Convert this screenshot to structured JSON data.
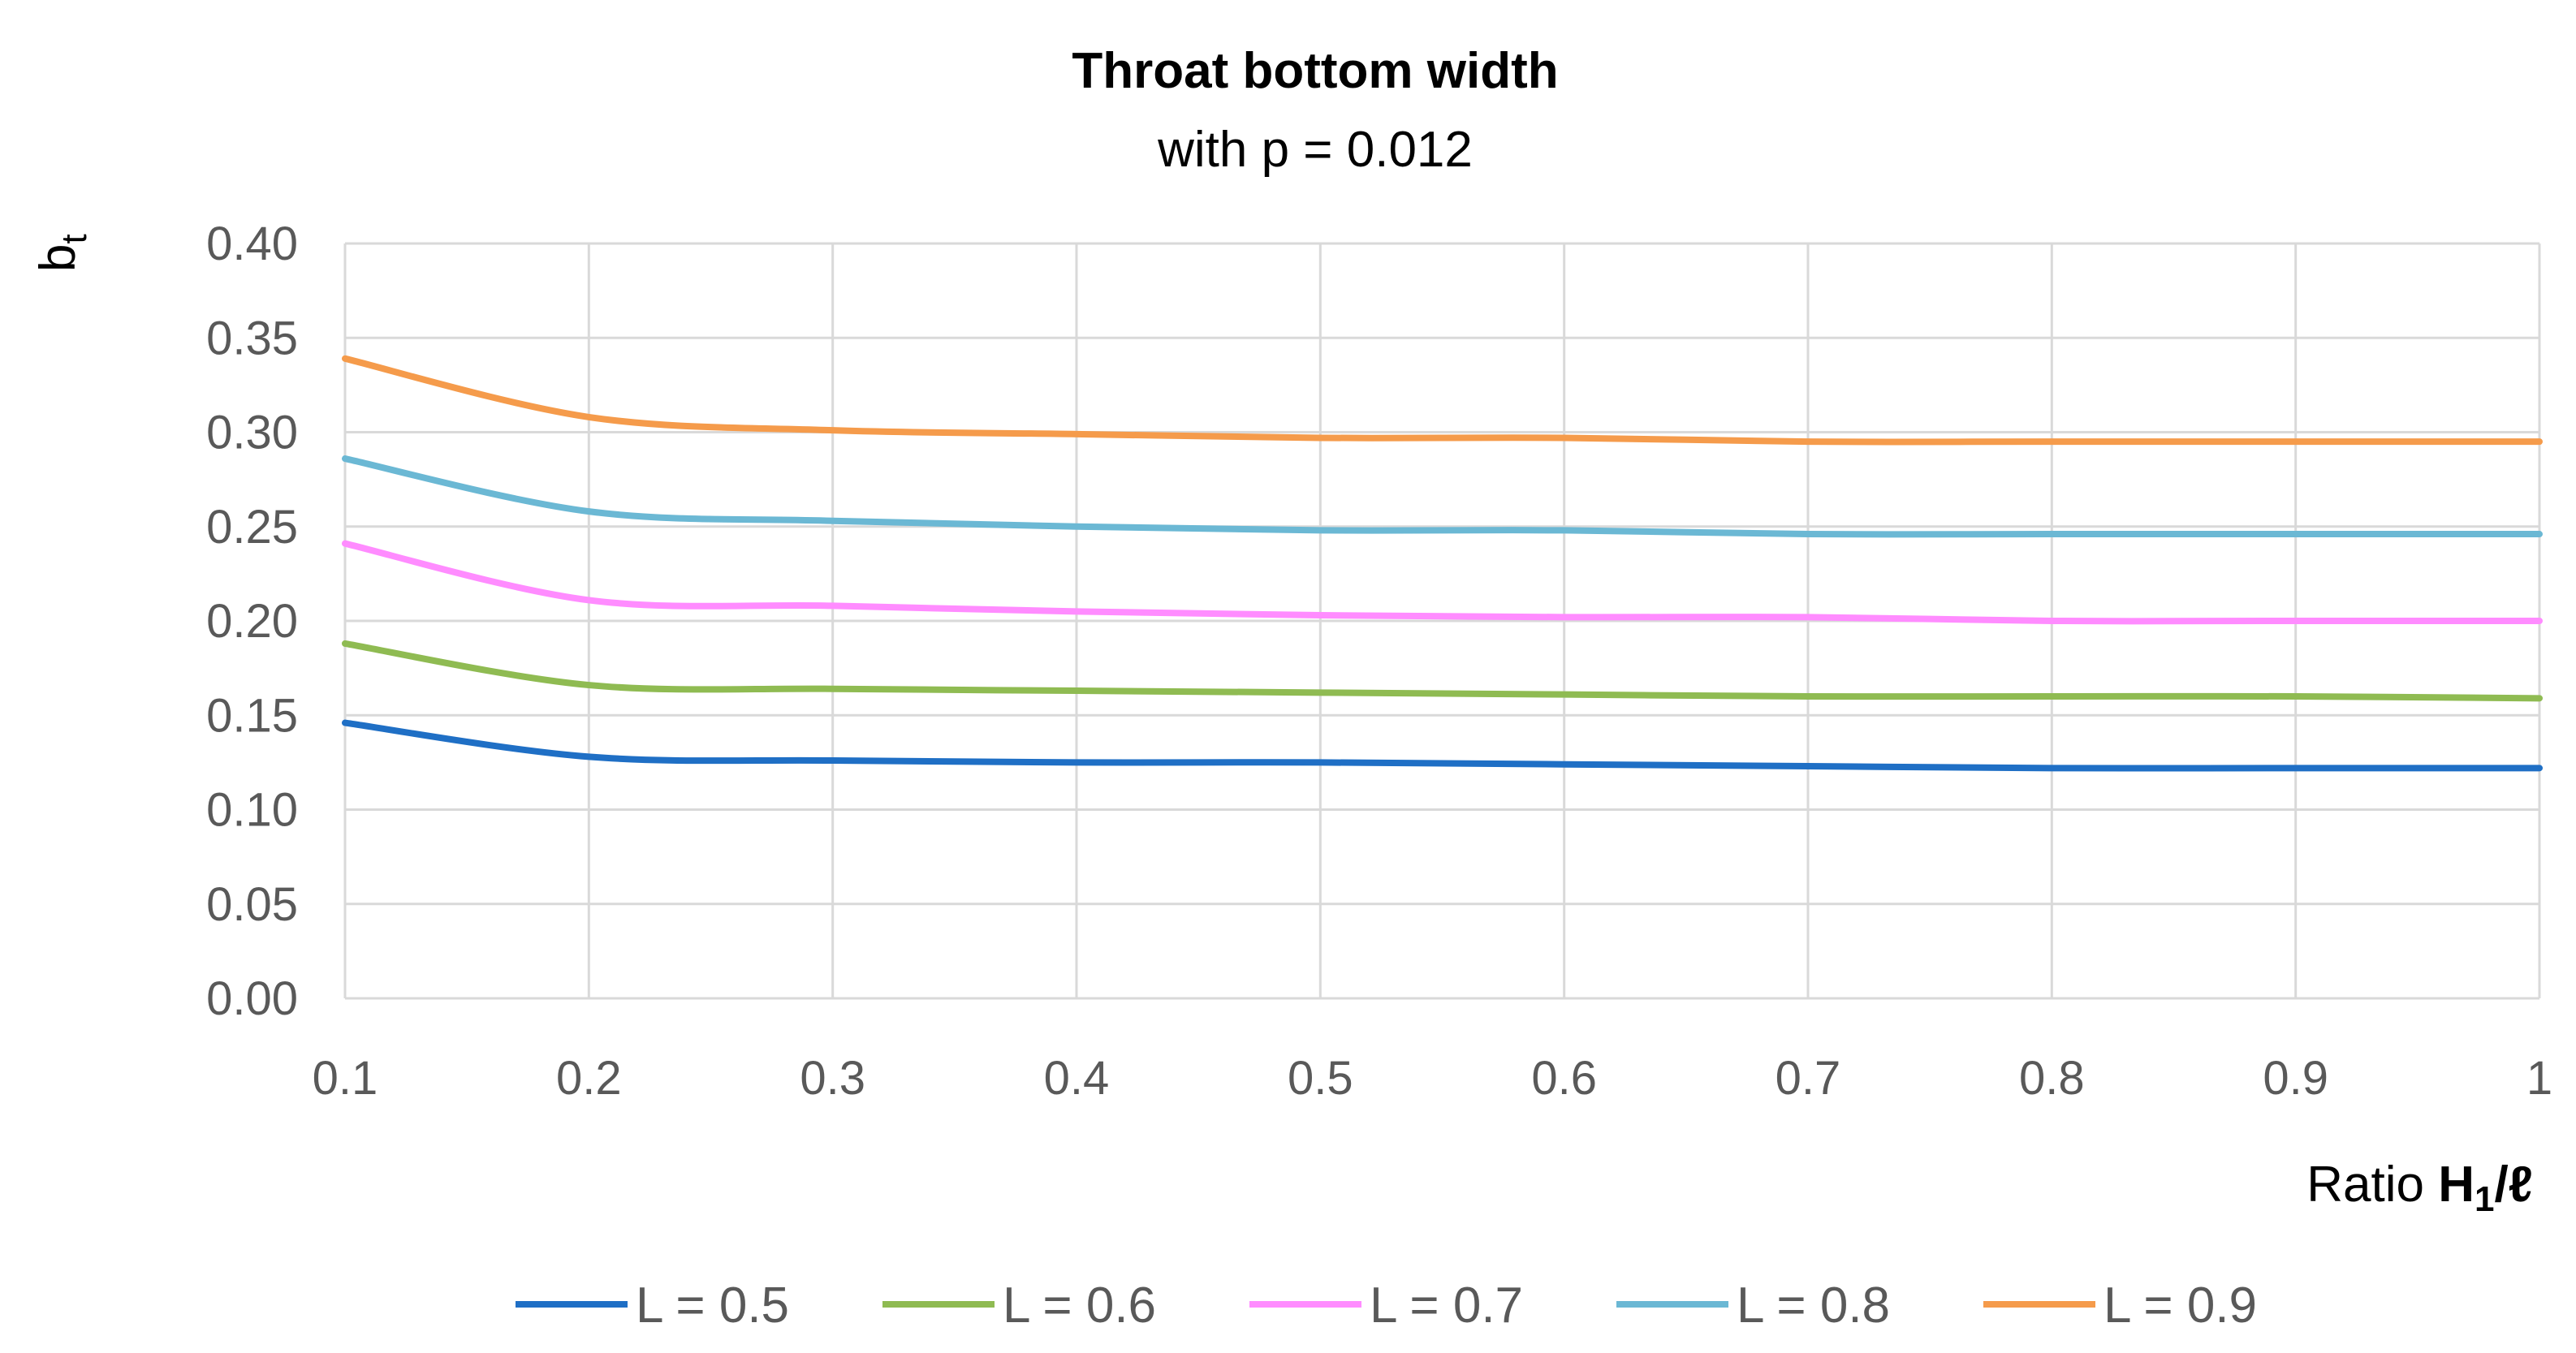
{
  "chart_data": {
    "type": "line",
    "title": "Throat bottom width",
    "subtitle": "with p = 0.012",
    "ylabel_main": "b",
    "ylabel_sub": "t",
    "xlabel_prefix": "Ratio ",
    "xlabel_main": "H",
    "xlabel_sub": "1",
    "xlabel_suffix": "/ℓ",
    "xlim": [
      0.1,
      1.0
    ],
    "ylim": [
      0.0,
      0.4
    ],
    "x_ticks": [
      "0.1",
      "0.2",
      "0.3",
      "0.4",
      "0.5",
      "0.6",
      "0.7",
      "0.8",
      "0.9",
      "1"
    ],
    "y_ticks": [
      "0.00",
      "0.05",
      "0.10",
      "0.15",
      "0.20",
      "0.25",
      "0.30",
      "0.35",
      "0.40"
    ],
    "grid": true,
    "legend_position": "bottom",
    "x": [
      0.1,
      0.2,
      0.3,
      0.4,
      0.5,
      0.6,
      0.7,
      0.8,
      0.9,
      1.0
    ],
    "series": [
      {
        "name": "L = 0.5",
        "color": "#1f6fc5",
        "values": [
          0.146,
          0.128,
          0.126,
          0.125,
          0.125,
          0.124,
          0.123,
          0.122,
          0.122,
          0.122
        ]
      },
      {
        "name": "L = 0.6",
        "color": "#8fbb52",
        "values": [
          0.188,
          0.166,
          0.164,
          0.163,
          0.162,
          0.161,
          0.16,
          0.16,
          0.16,
          0.159
        ]
      },
      {
        "name": "L = 0.7",
        "color": "#ff8cff",
        "values": [
          0.241,
          0.211,
          0.208,
          0.205,
          0.203,
          0.202,
          0.202,
          0.2,
          0.2,
          0.2
        ]
      },
      {
        "name": "L = 0.8",
        "color": "#6bb8d4",
        "values": [
          0.286,
          0.258,
          0.253,
          0.25,
          0.248,
          0.248,
          0.246,
          0.246,
          0.246,
          0.246
        ]
      },
      {
        "name": "L = 0.9",
        "color": "#f59b4b",
        "values": [
          0.339,
          0.308,
          0.301,
          0.299,
          0.297,
          0.297,
          0.295,
          0.295,
          0.295,
          0.295
        ]
      }
    ]
  }
}
